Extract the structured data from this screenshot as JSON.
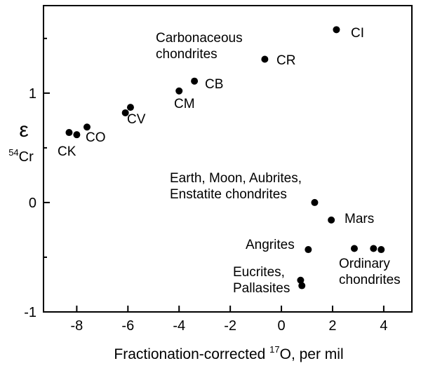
{
  "chart_data": {
    "type": "scatter",
    "xlabel_pre": "Fractionation-corrected ",
    "xlabel_sup": "17",
    "xlabel_post": "O, per mil",
    "ylabel_symbol": "ε",
    "ylabel_sup": "54",
    "ylabel_post": "Cr",
    "xlim": [
      -9.3,
      5.1
    ],
    "ylim": [
      -1.0,
      1.8
    ],
    "xticks": [
      -8,
      -6,
      -4,
      -2,
      0,
      2,
      4
    ],
    "xtick_labels": [
      "-8",
      "-6",
      "-4",
      "-2",
      "0",
      "2",
      "4"
    ],
    "yticks": [
      -1,
      0,
      1
    ],
    "ytick_labels": [
      "-1",
      "0",
      "1"
    ],
    "grid": false,
    "points": [
      {
        "x": 2.15,
        "y": 1.58
      },
      {
        "x": -0.65,
        "y": 1.31
      },
      {
        "x": -3.4,
        "y": 1.11
      },
      {
        "x": -4.0,
        "y": 1.02
      },
      {
        "x": -5.9,
        "y": 0.87
      },
      {
        "x": -6.1,
        "y": 0.82
      },
      {
        "x": -7.6,
        "y": 0.69
      },
      {
        "x": -8.0,
        "y": 0.62
      },
      {
        "x": -8.3,
        "y": 0.64
      },
      {
        "x": 1.3,
        "y": 0.0
      },
      {
        "x": 1.95,
        "y": -0.16
      },
      {
        "x": 1.05,
        "y": -0.43
      },
      {
        "x": 2.85,
        "y": -0.42
      },
      {
        "x": 3.6,
        "y": -0.42
      },
      {
        "x": 3.9,
        "y": -0.43
      },
      {
        "x": 0.75,
        "y": -0.71
      },
      {
        "x": 0.8,
        "y": -0.76
      }
    ],
    "labels": [
      {
        "name": "ci",
        "lines": [
          "CI"
        ]
      },
      {
        "name": "carbonaceous",
        "lines": [
          "Carbonaceous",
          "chondrites"
        ]
      },
      {
        "name": "cr",
        "lines": [
          "CR"
        ]
      },
      {
        "name": "cb",
        "lines": [
          "CB"
        ]
      },
      {
        "name": "cm",
        "lines": [
          "CM"
        ]
      },
      {
        "name": "cv",
        "lines": [
          "CV"
        ]
      },
      {
        "name": "co",
        "lines": [
          "CO"
        ]
      },
      {
        "name": "ck",
        "lines": [
          "CK"
        ]
      },
      {
        "name": "earth-group",
        "lines": [
          "Earth, Moon, Aubrites,",
          "Enstatite chondrites"
        ]
      },
      {
        "name": "mars",
        "lines": [
          "Mars"
        ]
      },
      {
        "name": "angrites",
        "lines": [
          "Angrites"
        ]
      },
      {
        "name": "ordinary",
        "lines": [
          "Ordinary",
          "chondrites"
        ]
      },
      {
        "name": "eucrites",
        "lines": [
          "Eucrites,",
          "Pallasites"
        ]
      }
    ]
  }
}
